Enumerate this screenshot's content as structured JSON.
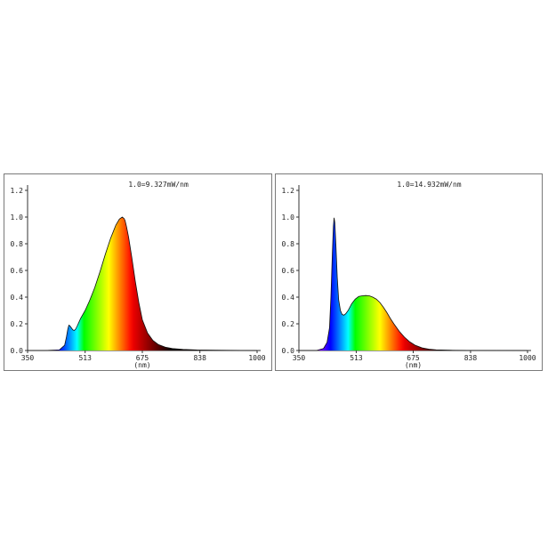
{
  "chart_data": [
    {
      "type": "area",
      "annotation": "1.0=9.327mW/nm",
      "xlabel": "(nm)",
      "ylabel": "",
      "xlim": [
        350,
        1000
      ],
      "ylim": [
        0,
        1.2
      ],
      "x_ticks": [
        "350",
        "513",
        "675",
        "838",
        "1000"
      ],
      "y_ticks": [
        "0.0",
        "0.2",
        "0.4",
        "0.6",
        "0.8",
        "1.0",
        "1.2"
      ],
      "grid": false,
      "fill": "wavelength spectrum gradient",
      "series": [
        {
          "x": [
            350,
            400,
            440,
            455,
            460,
            464,
            467,
            470,
            474,
            478,
            482,
            486,
            490,
            500,
            513,
            525,
            540,
            555,
            570,
            585,
            600,
            610,
            618,
            623,
            626,
            630,
            636,
            645,
            655,
            665,
            675,
            690,
            705,
            720,
            740,
            760,
            790,
            830,
            880,
            1000
          ],
          "values": [
            0,
            0,
            0.005,
            0.04,
            0.1,
            0.16,
            0.19,
            0.185,
            0.17,
            0.155,
            0.15,
            0.16,
            0.18,
            0.24,
            0.3,
            0.37,
            0.47,
            0.59,
            0.72,
            0.84,
            0.94,
            0.985,
            1.0,
            0.99,
            0.975,
            0.93,
            0.85,
            0.7,
            0.52,
            0.36,
            0.23,
            0.13,
            0.075,
            0.045,
            0.025,
            0.015,
            0.008,
            0.004,
            0.002,
            0
          ]
        }
      ]
    },
    {
      "type": "area",
      "annotation": "1.0=14.932mW/nm",
      "xlabel": "(nm)",
      "ylabel": "",
      "xlim": [
        350,
        1000
      ],
      "ylim": [
        0,
        1.2
      ],
      "x_ticks": [
        "350",
        "513",
        "675",
        "838",
        "1000"
      ],
      "y_ticks": [
        "0.0",
        "0.2",
        "0.4",
        "0.6",
        "0.8",
        "1.0",
        "1.2"
      ],
      "grid": false,
      "fill": "wavelength spectrum gradient",
      "series": [
        {
          "x": [
            350,
            400,
            420,
            430,
            437,
            441,
            445,
            448,
            450,
            452,
            455,
            459,
            463,
            468,
            473,
            478,
            483,
            490,
            500,
            510,
            520,
            530,
            540,
            550,
            560,
            570,
            580,
            590,
            600,
            610,
            620,
            635,
            650,
            665,
            680,
            700,
            720,
            740,
            780,
            830,
            1000
          ],
          "values": [
            0,
            0,
            0.015,
            0.06,
            0.17,
            0.4,
            0.72,
            0.93,
            0.995,
            0.96,
            0.8,
            0.55,
            0.38,
            0.3,
            0.27,
            0.265,
            0.275,
            0.3,
            0.35,
            0.385,
            0.405,
            0.41,
            0.412,
            0.41,
            0.4,
            0.385,
            0.36,
            0.325,
            0.285,
            0.24,
            0.2,
            0.145,
            0.1,
            0.065,
            0.04,
            0.02,
            0.01,
            0.005,
            0.002,
            0.001,
            0
          ]
        }
      ]
    }
  ]
}
